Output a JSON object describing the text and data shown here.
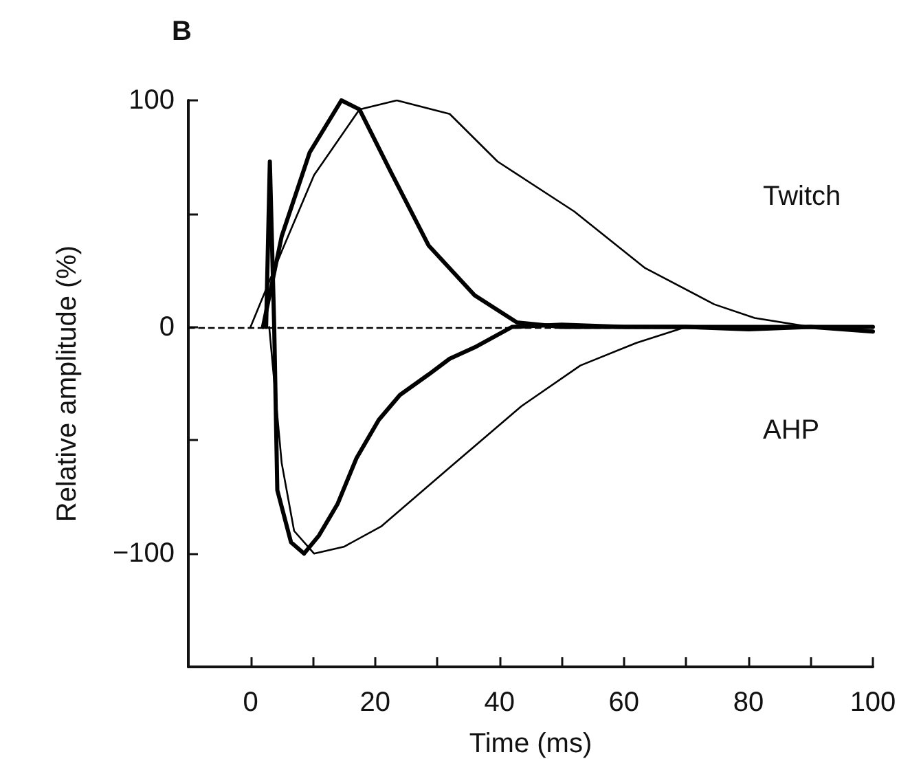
{
  "chart_data": {
    "type": "line",
    "title": "B",
    "xlabel": "Time (ms)",
    "ylabel": "Relative amplitude (%)",
    "annotations": [
      "Twitch",
      "AHP"
    ],
    "xlim": [
      -10,
      100
    ],
    "xticks": [
      0,
      {
        "value": 10,
        "label": null
      },
      20,
      {
        "value": 30,
        "label": null
      },
      40,
      {
        "value": 50,
        "label": null
      },
      60,
      {
        "value": 70,
        "label": null
      },
      80,
      {
        "value": 90,
        "label": null
      },
      100
    ],
    "ylim": [
      -150,
      100
    ],
    "yticks": [
      -100,
      {
        "value": -50,
        "label": null
      },
      0,
      {
        "value": 50,
        "label": null
      },
      100
    ],
    "grid": false,
    "marker": "none",
    "line_style": "solid",
    "ref_lines": [
      {
        "axis": "y",
        "value": 0,
        "line_style": "dashed",
        "color": "#000000"
      }
    ],
    "series": [
      {
        "color": "#000000",
        "x": [
          2,
          5,
          9.5,
          14.6,
          17.5,
          22.8,
          28.6,
          36,
          42.8,
          50,
          60,
          70,
          80,
          90,
          100
        ],
        "values": [
          0,
          40,
          77,
          100,
          96,
          67,
          36,
          14,
          2,
          0,
          0,
          0,
          0,
          0,
          0
        ]
      },
      {
        "color": "#000000",
        "x": [
          0,
          5.1,
          10.2,
          17.5,
          23.5,
          32,
          39.7,
          52,
          63.4,
          74.5,
          81,
          90,
          100
        ],
        "values": [
          0,
          34,
          67,
          96,
          100,
          94,
          73,
          51,
          26,
          10,
          4,
          0,
          0
        ]
      },
      {
        "color": "#000000",
        "x": [
          2.5,
          3.1,
          3.8,
          4.3,
          6.5,
          8.6,
          11,
          14,
          17,
          20.6,
          24,
          28.6,
          32,
          36,
          42,
          50,
          60,
          70,
          80,
          90,
          100
        ],
        "values": [
          0,
          73,
          0,
          -72,
          -95,
          -100,
          -92,
          -78,
          -58,
          -41,
          -30,
          -21,
          -14,
          -9,
          0,
          1,
          0,
          0,
          -1,
          0,
          -2
        ]
      },
      {
        "color": "#000000",
        "x": [
          3,
          5,
          7,
          10.2,
          15,
          21,
          32,
          43.5,
          53,
          62,
          70,
          80,
          90,
          100
        ],
        "values": [
          0,
          -60,
          -90,
          -100,
          -97,
          -88,
          -62,
          -35,
          -17,
          -7,
          0,
          0,
          0,
          0
        ]
      }
    ]
  }
}
